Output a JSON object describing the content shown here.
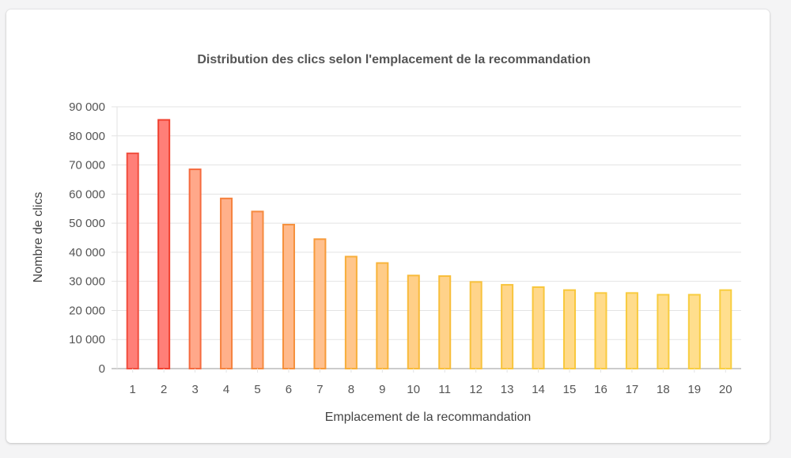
{
  "chart_data": {
    "type": "bar",
    "title": "Distribution des clics selon l'emplacement de la recommandation",
    "xlabel": "Emplacement de la recommandation",
    "ylabel": "Nombre de clics",
    "categories": [
      "1",
      "2",
      "3",
      "4",
      "5",
      "6",
      "7",
      "8",
      "9",
      "10",
      "11",
      "12",
      "13",
      "14",
      "15",
      "16",
      "17",
      "18",
      "19",
      "20"
    ],
    "values": [
      74000,
      85500,
      68500,
      58500,
      54000,
      49500,
      44500,
      38500,
      36300,
      32000,
      31800,
      29800,
      28800,
      28000,
      27000,
      26000,
      26000,
      25400,
      25400,
      27000
    ],
    "ylim": [
      0,
      90000
    ],
    "yticks": [
      "0",
      "10 000",
      "20 000",
      "30 000",
      "40 000",
      "50 000",
      "60 000",
      "70 000",
      "80 000",
      "90 000"
    ],
    "grid": true,
    "legend": "none",
    "colors": {
      "bar_fills": [
        "#ff7f78",
        "#ff7f78",
        "#ffa88a",
        "#ffb08a",
        "#ffb08a",
        "#ffba8c",
        "#ffc08e",
        "#ffc68c",
        "#ffcc88",
        "#ffcf88",
        "#ffd28a",
        "#ffd48a",
        "#ffd68a",
        "#ffd88a",
        "#ffda8a",
        "#ffdb8b",
        "#ffdc8c",
        "#ffdd8c",
        "#ffde8d",
        "#ffdf8e"
      ],
      "bar_strokes": [
        "#f04e3e",
        "#f0402f",
        "#f56a3e",
        "#f5823e",
        "#f58a3e",
        "#f5903c",
        "#f79a3a",
        "#f7ae3a",
        "#f8b43a",
        "#f8ba3a",
        "#f8be3a",
        "#f8c23c",
        "#f8c43c",
        "#f8c63c",
        "#f8c83c",
        "#f8ca3e",
        "#f8cb3e",
        "#f8cc40",
        "#f8cd40",
        "#f8ce40"
      ],
      "grid": "#e3e3e3",
      "axis": "#999999"
    }
  }
}
